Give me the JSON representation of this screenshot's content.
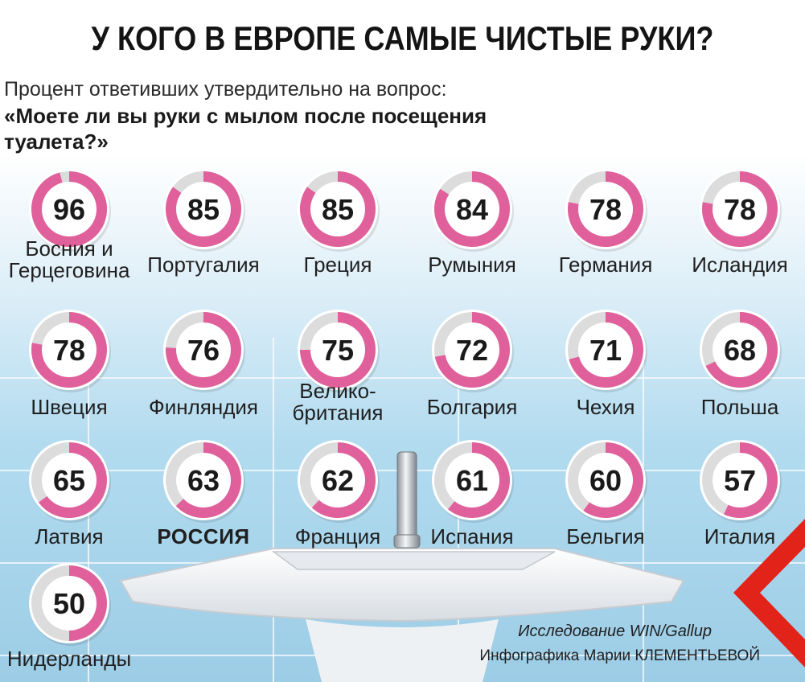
{
  "title": "У КОГО В ЕВРОПЕ САМЫЕ ЧИСТЫЕ РУКИ?",
  "subtitle": "Процент ответивших утвердительно на вопрос:",
  "question": "«Моете ли вы руки с мылом после посещения туалета?»",
  "source": "Исследование WIN/Gallup",
  "credit": "Инфографика Марии КЛЕМЕНТЬЕВОЙ",
  "colors": {
    "accent": "#e0609c",
    "ring_rest": "#dcdcdc",
    "logo_red": "#e2231a",
    "tile_blue": "#a9d6ec"
  },
  "chart_data": {
    "type": "pie",
    "unit": "%",
    "max": 100,
    "title": "У КОГО В ЕВРОПЕ САМЫЕ ЧИСТЫЕ РУКИ?",
    "items": [
      {
        "country": "Босния и\nГерцеговина",
        "value": 96
      },
      {
        "country": "Португалия",
        "value": 85
      },
      {
        "country": "Греция",
        "value": 85
      },
      {
        "country": "Румыния",
        "value": 84
      },
      {
        "country": "Германия",
        "value": 78
      },
      {
        "country": "Исландия",
        "value": 78
      },
      {
        "country": "Швеция",
        "value": 78
      },
      {
        "country": "Финляндия",
        "value": 76
      },
      {
        "country": "Велико-\nбритания",
        "value": 75
      },
      {
        "country": "Болгария",
        "value": 72
      },
      {
        "country": "Чехия",
        "value": 71
      },
      {
        "country": "Польша",
        "value": 68
      },
      {
        "country": "Латвия",
        "value": 65
      },
      {
        "country": "РОССИЯ",
        "value": 63,
        "highlight": true
      },
      {
        "country": "Франция",
        "value": 62
      },
      {
        "country": "Испания",
        "value": 61
      },
      {
        "country": "Бельгия",
        "value": 60
      },
      {
        "country": "Италия",
        "value": 57
      },
      {
        "country": "Нидерланды",
        "value": 50
      }
    ]
  }
}
